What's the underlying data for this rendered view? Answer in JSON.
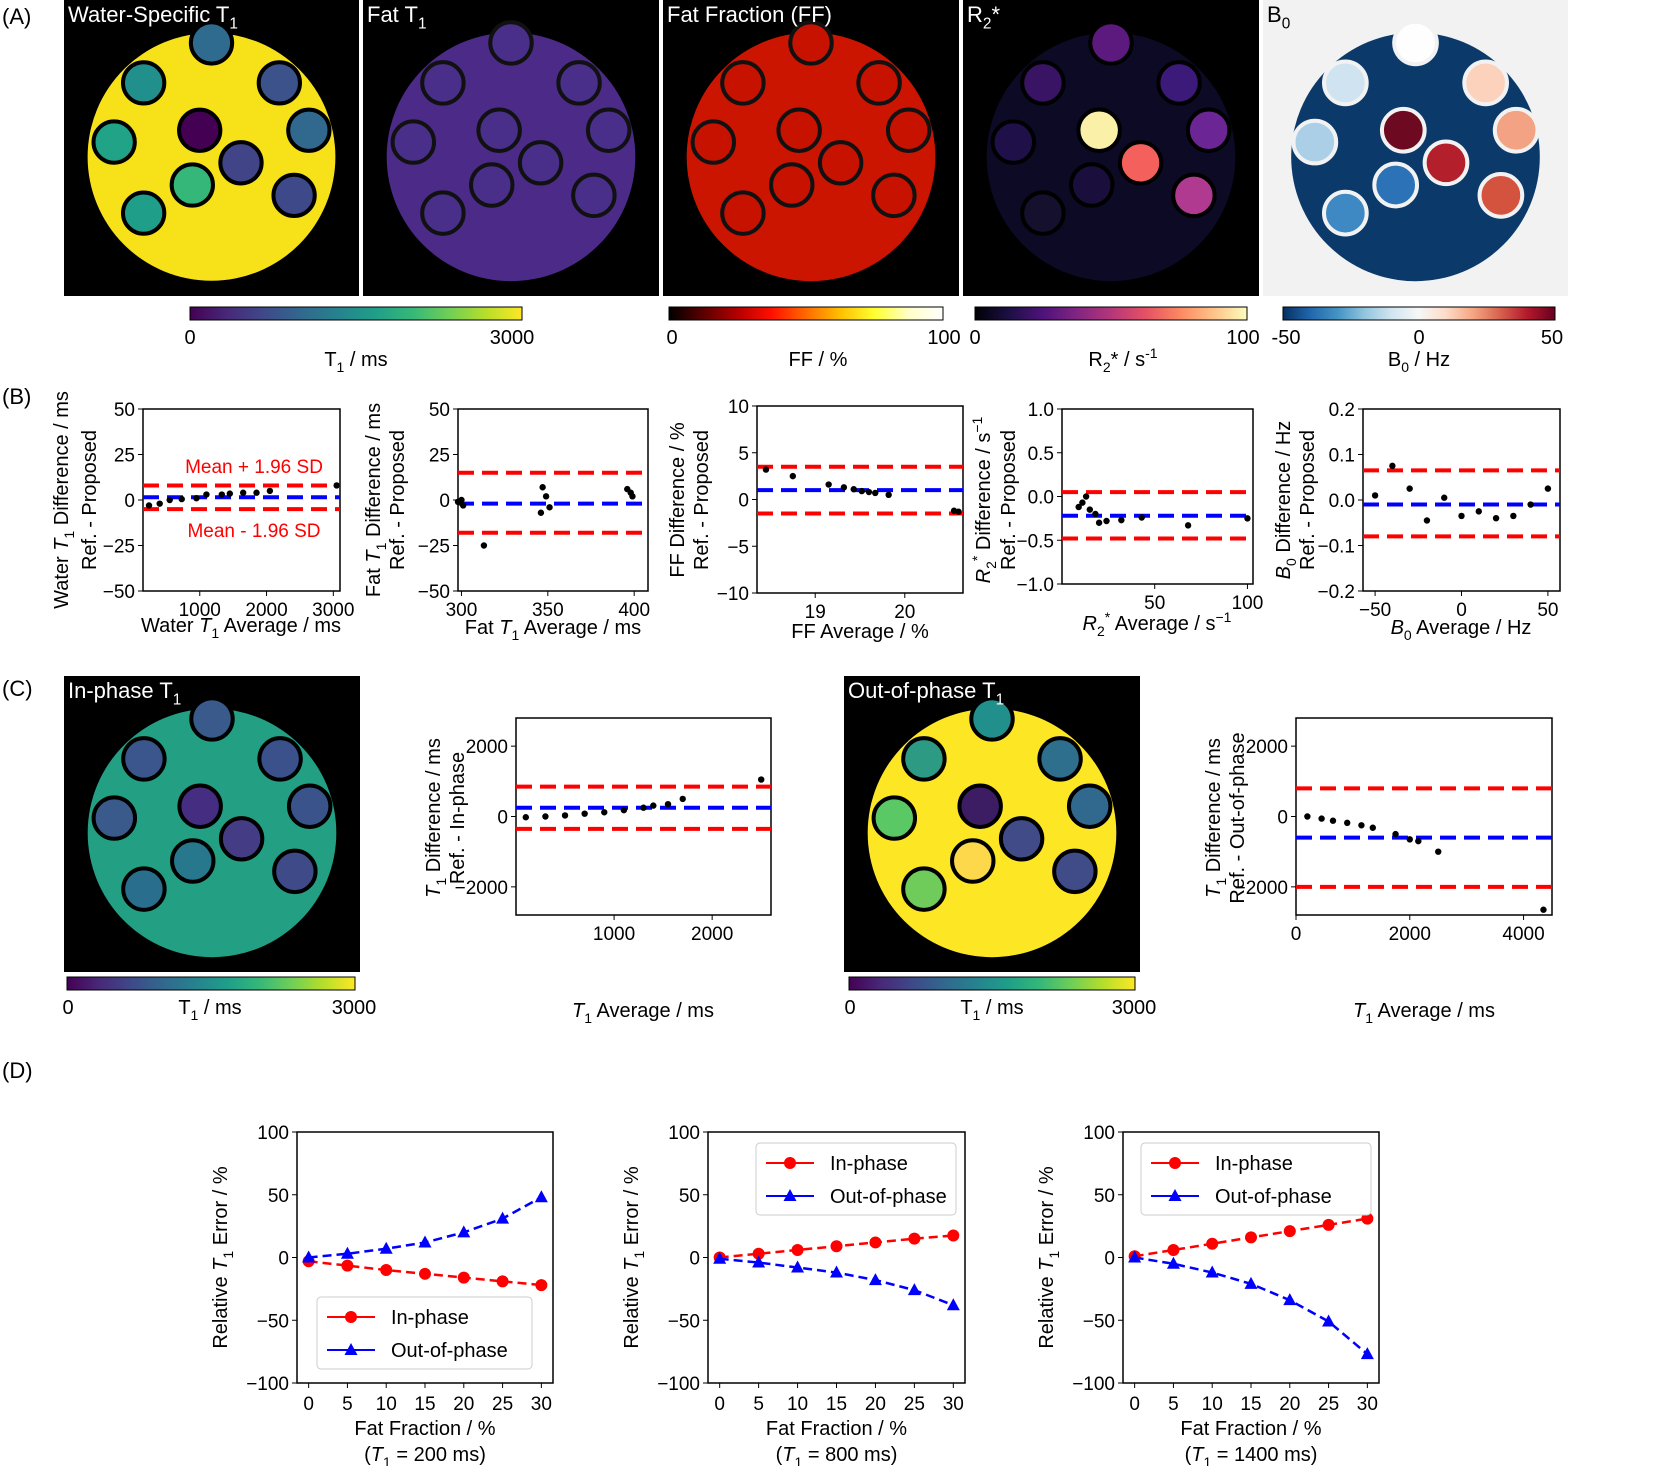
{
  "panels": {
    "A": "(A)",
    "B": "(B)",
    "C": "(C)",
    "D": "(D)"
  },
  "maps": {
    "water_t1": {
      "main": "Water-Specific T",
      "sub": "1"
    },
    "fat_t1": {
      "main": "Fat T",
      "sub": "1"
    },
    "ff": {
      "main": "Fat Fraction (FF)",
      "sub": ""
    },
    "r2s": {
      "main": "R",
      "sub": "2",
      "suffix": "*"
    },
    "b0": {
      "main": "B",
      "sub": "0"
    },
    "inphase": {
      "main": "In-phase T",
      "sub": "1"
    },
    "outphase": {
      "main": "Out-of-phase T",
      "sub": "1"
    }
  },
  "colorbars": {
    "t1": {
      "min": "0",
      "max": "3000",
      "label_main": "T",
      "label_sub": "1",
      "label_suffix": " / ms"
    },
    "ff": {
      "min": "0",
      "max": "100",
      "label": "FF / %"
    },
    "r2s": {
      "min": "0",
      "max": "100",
      "label_main": "R",
      "label_sub": "2",
      "label_suffix": "* / s",
      "label_sup": "-1"
    },
    "b0": {
      "min": "-50",
      "mid": "0",
      "max": "50",
      "label_main": "B",
      "label_sub": "0",
      "label_suffix": " / Hz"
    }
  },
  "bland_altman_annotations": {
    "upper": "Mean + 1.96 SD",
    "lower": "Mean - 1.96 SD"
  },
  "colors": {
    "mean_line": "#0000ff",
    "limits_line": "#ff0000",
    "points": "#000000",
    "inphase": "#ff0000",
    "outphase": "#0000ff"
  },
  "chart_data": [
    {
      "id": "B1",
      "type": "scatter",
      "xlabel": "Water T1 Average / ms",
      "ylabel_top": "Water T1 Difference / ms",
      "ylabel_bottom": "Ref. - Proposed",
      "xlim": [
        150,
        3100
      ],
      "ylim": [
        -50,
        50
      ],
      "xticks": [
        1000,
        2000,
        3000
      ],
      "yticks": [
        -50,
        -25,
        0,
        25,
        50
      ],
      "mean": 1.5,
      "upper": 8,
      "lower": -5,
      "points": [
        [
          240,
          -3
        ],
        [
          400,
          -2
        ],
        [
          550,
          0
        ],
        [
          730,
          0.5
        ],
        [
          950,
          1
        ],
        [
          1100,
          3
        ],
        [
          1330,
          3
        ],
        [
          1450,
          3.5
        ],
        [
          1650,
          4
        ],
        [
          1850,
          4
        ],
        [
          2050,
          5
        ],
        [
          3050,
          8
        ]
      ]
    },
    {
      "id": "B2",
      "type": "scatter",
      "xlabel": "Fat T1 Average / ms",
      "ylabel_top": "Fat T1 Difference / ms",
      "ylabel_bottom": "Ref. - Proposed",
      "xlim": [
        298,
        408
      ],
      "ylim": [
        -50,
        50
      ],
      "xticks": [
        300,
        350,
        400
      ],
      "yticks": [
        -50,
        -25,
        0,
        25,
        50
      ],
      "mean": -2,
      "upper": 15,
      "lower": -18,
      "points": [
        [
          298,
          -1
        ],
        [
          300,
          0
        ],
        [
          301,
          -3
        ],
        [
          313,
          -25
        ],
        [
          346,
          -7
        ],
        [
          347,
          7
        ],
        [
          349,
          2
        ],
        [
          351,
          -4
        ],
        [
          396,
          6
        ],
        [
          398,
          4
        ],
        [
          399,
          2
        ]
      ]
    },
    {
      "id": "B3",
      "type": "scatter",
      "xlabel": "FF Average / %",
      "ylabel_top": "FF Difference / %",
      "ylabel_bottom": "Ref. - Proposed",
      "xlim": [
        18.35,
        20.65
      ],
      "ylim": [
        -10,
        10
      ],
      "xticks": [
        19,
        20
      ],
      "yticks": [
        -10,
        -5,
        0,
        5,
        10
      ],
      "mean": 1,
      "upper": 3.5,
      "lower": -1.5,
      "points": [
        [
          18.45,
          3.2
        ],
        [
          18.75,
          2.5
        ],
        [
          19.15,
          1.6
        ],
        [
          19.32,
          1.3
        ],
        [
          19.43,
          1.1
        ],
        [
          19.52,
          0.9
        ],
        [
          19.6,
          0.8
        ],
        [
          19.67,
          0.7
        ],
        [
          19.82,
          0.5
        ],
        [
          20.55,
          -1.2
        ],
        [
          20.6,
          -1.3
        ]
      ]
    },
    {
      "id": "B4",
      "type": "scatter",
      "xlabel": "R2* Average / s-1",
      "ylabel_top": "R2* Difference / s-1",
      "ylabel_bottom": "Ref. - Proposed",
      "xlim": [
        0,
        103
      ],
      "ylim": [
        -1,
        1
      ],
      "xticks": [
        50,
        100
      ],
      "yticks": [
        -1.0,
        -0.5,
        0.0,
        0.5,
        1.0
      ],
      "mean": -0.22,
      "upper": 0.05,
      "lower": -0.48,
      "points": [
        [
          9,
          -0.12
        ],
        [
          11,
          -0.07
        ],
        [
          13,
          0.0
        ],
        [
          15,
          -0.15
        ],
        [
          18,
          -0.2
        ],
        [
          20,
          -0.3
        ],
        [
          24,
          -0.28
        ],
        [
          32,
          -0.27
        ],
        [
          43,
          -0.24
        ],
        [
          68,
          -0.33
        ],
        [
          100,
          -0.25
        ]
      ]
    },
    {
      "id": "B5",
      "type": "scatter",
      "xlabel": "B0 Average / Hz",
      "ylabel_top": "B0 Difference / Hz",
      "ylabel_bottom": "Ref. - Proposed",
      "xlim": [
        -57,
        57
      ],
      "ylim": [
        -0.2,
        0.2
      ],
      "xticks": [
        -50,
        0,
        50
      ],
      "yticks": [
        -0.2,
        -0.1,
        0.0,
        0.1,
        0.2
      ],
      "mean": -0.01,
      "upper": 0.065,
      "lower": -0.08,
      "points": [
        [
          -50,
          0.01
        ],
        [
          -40,
          0.075
        ],
        [
          -30,
          0.025
        ],
        [
          -20,
          -0.045
        ],
        [
          -10,
          0.005
        ],
        [
          0,
          -0.035
        ],
        [
          10,
          -0.025
        ],
        [
          20,
          -0.04
        ],
        [
          30,
          -0.035
        ],
        [
          40,
          -0.01
        ],
        [
          50,
          0.025
        ]
      ]
    },
    {
      "id": "C1",
      "type": "scatter",
      "xlabel": "T1 Average / ms",
      "ylabel_top": "T1 Difference / ms",
      "ylabel_bottom": "Ref. - In-phase",
      "xlim": [
        0,
        2600
      ],
      "ylim": [
        -2800,
        2800
      ],
      "xticks": [
        1000,
        2000
      ],
      "yticks": [
        -2000,
        0,
        2000
      ],
      "mean": 250,
      "upper": 850,
      "lower": -350,
      "points": [
        [
          100,
          -20
        ],
        [
          300,
          0
        ],
        [
          500,
          30
        ],
        [
          700,
          80
        ],
        [
          900,
          120
        ],
        [
          1100,
          180
        ],
        [
          1300,
          250
        ],
        [
          1400,
          310
        ],
        [
          1550,
          350
        ],
        [
          1700,
          500
        ],
        [
          2500,
          1050
        ]
      ]
    },
    {
      "id": "C2",
      "type": "scatter",
      "xlabel": "T1 Average / ms",
      "ylabel_top": "T1 Difference / ms",
      "ylabel_bottom": "Ref. - Out-of-phase",
      "xlim": [
        0,
        4500
      ],
      "ylim": [
        -2800,
        2800
      ],
      "xticks": [
        0,
        2000,
        4000
      ],
      "yticks": [
        -2000,
        0,
        2000
      ],
      "mean": -600,
      "upper": 800,
      "lower": -2000,
      "points": [
        [
          200,
          0
        ],
        [
          450,
          -60
        ],
        [
          650,
          -120
        ],
        [
          900,
          -180
        ],
        [
          1150,
          -250
        ],
        [
          1350,
          -320
        ],
        [
          1750,
          -500
        ],
        [
          2000,
          -650
        ],
        [
          2150,
          -700
        ],
        [
          2500,
          -1000
        ],
        [
          4350,
          -2650
        ]
      ]
    },
    {
      "id": "D1",
      "type": "line",
      "xlabel": "Fat Fraction / %",
      "subcaption": "(T1 = 200 ms)",
      "ylabel": "Relative T1 Error / %",
      "xlim": [
        -1.5,
        31.5
      ],
      "ylim": [
        -100,
        100
      ],
      "x": [
        0,
        5,
        10,
        15,
        20,
        25,
        30
      ],
      "legend_position": "lower-left",
      "series": [
        {
          "name": "In-phase",
          "values": [
            -3,
            -6.5,
            -10,
            -13,
            -16,
            -19,
            -22
          ]
        },
        {
          "name": "Out-of-phase",
          "values": [
            0,
            3,
            7,
            12,
            20,
            31,
            48
          ]
        }
      ]
    },
    {
      "id": "D2",
      "type": "line",
      "xlabel": "Fat Fraction / %",
      "subcaption": "(T1 = 800 ms)",
      "ylabel": "Relative T1 Error / %",
      "xlim": [
        -1.5,
        31.5
      ],
      "ylim": [
        -100,
        100
      ],
      "x": [
        0,
        5,
        10,
        15,
        20,
        25,
        30
      ],
      "legend_position": "upper-left",
      "series": [
        {
          "name": "In-phase",
          "values": [
            0,
            3,
            6,
            9,
            12,
            15,
            17.5
          ]
        },
        {
          "name": "Out-of-phase",
          "values": [
            -1,
            -4,
            -8,
            -12,
            -18,
            -26,
            -38
          ]
        }
      ]
    },
    {
      "id": "D3",
      "type": "line",
      "xlabel": "Fat Fraction / %",
      "subcaption": "(T1 = 1400 ms)",
      "ylabel": "Relative T1 Error / %",
      "xlim": [
        -1.5,
        31.5
      ],
      "ylim": [
        -100,
        100
      ],
      "x": [
        0,
        5,
        10,
        15,
        20,
        25,
        30
      ],
      "legend_position": "upper-left",
      "series": [
        {
          "name": "In-phase",
          "values": [
            1,
            6,
            11,
            16,
            21,
            26,
            31
          ]
        },
        {
          "name": "Out-of-phase",
          "values": [
            0,
            -5,
            -12,
            -21,
            -34,
            -51,
            -77
          ]
        }
      ]
    }
  ]
}
